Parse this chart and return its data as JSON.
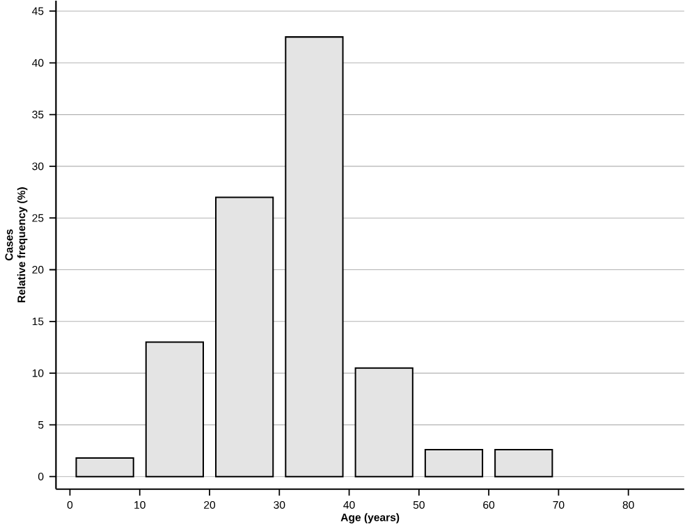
{
  "chart_data": {
    "type": "histogram",
    "xlabel": "Age (years)",
    "ylabel": "Cases\nRelative frequency (%)",
    "bins": [
      0,
      10,
      20,
      30,
      40,
      50,
      60,
      70
    ],
    "values": [
      1.8,
      13,
      27,
      42.5,
      10.5,
      2.6,
      2.6
    ],
    "color": "#e4e4e4",
    "xlim": [
      -2,
      88
    ],
    "xticks": [
      0,
      10,
      20,
      30,
      40,
      50,
      60,
      70,
      80
    ],
    "ylim": [
      -1.2,
      46
    ],
    "yticks": [
      0,
      5,
      10,
      15,
      20,
      25,
      30,
      35,
      40,
      45
    ],
    "grid": "y"
  }
}
